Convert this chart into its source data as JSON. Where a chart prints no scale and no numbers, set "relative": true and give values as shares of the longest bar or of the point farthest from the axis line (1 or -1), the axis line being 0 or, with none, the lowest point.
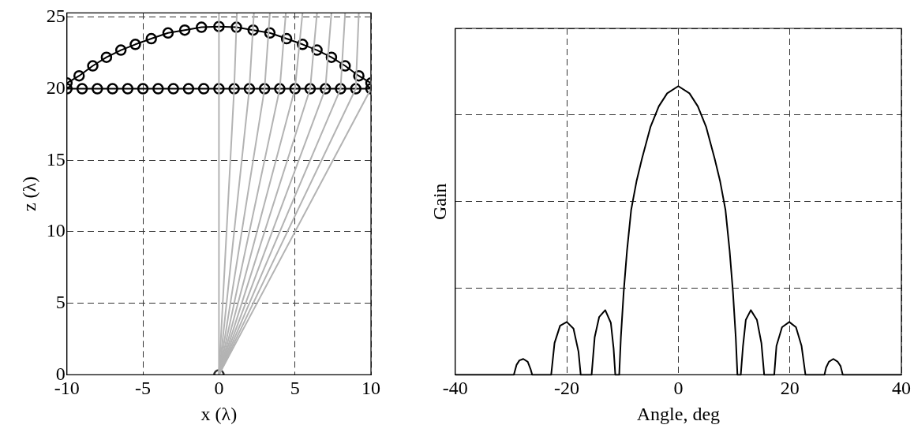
{
  "chart_data": [
    {
      "type": "line",
      "xlabel": "x (λ)",
      "ylabel": "z (λ)",
      "xlim": [
        -10,
        10
      ],
      "xticks": [
        -10,
        -5,
        0,
        5,
        10
      ],
      "ylim": [
        0,
        25.3
      ],
      "yticks": [
        0,
        5,
        10,
        15,
        20,
        25
      ],
      "grid": true,
      "line_style": "solid",
      "series": [
        {
          "color": "#b3b3b3",
          "marker": "none",
          "x": [
            0,
            0,
            0
          ],
          "values": [
            0,
            20,
            25.3
          ]
        },
        {
          "color": "#b3b3b3",
          "marker": "none",
          "x": [
            0,
            1,
            1.18
          ],
          "values": [
            0,
            20,
            25.3
          ]
        },
        {
          "color": "#b3b3b3",
          "marker": "none",
          "x": [
            0,
            2,
            2.3
          ],
          "values": [
            0,
            20,
            25.3
          ]
        },
        {
          "color": "#b3b3b3",
          "marker": "none",
          "x": [
            0,
            3,
            3.35
          ],
          "values": [
            0,
            20,
            25.3
          ]
        },
        {
          "color": "#b3b3b3",
          "marker": "none",
          "x": [
            0,
            4,
            4.4
          ],
          "values": [
            0,
            20,
            25.3
          ]
        },
        {
          "color": "#b3b3b3",
          "marker": "none",
          "x": [
            0,
            5,
            5.5
          ],
          "values": [
            0,
            20,
            25.3
          ]
        },
        {
          "color": "#b3b3b3",
          "marker": "none",
          "x": [
            0,
            6,
            6.45
          ],
          "values": [
            0,
            20,
            25.3
          ]
        },
        {
          "color": "#b3b3b3",
          "marker": "none",
          "x": [
            0,
            7,
            7.4
          ],
          "values": [
            0,
            20,
            25.3
          ]
        },
        {
          "color": "#b3b3b3",
          "marker": "none",
          "x": [
            0,
            8,
            8.3
          ],
          "values": [
            0,
            20,
            25.3
          ]
        },
        {
          "color": "#b3b3b3",
          "marker": "none",
          "x": [
            0,
            9,
            9.2
          ],
          "values": [
            0,
            20,
            25.3
          ]
        },
        {
          "color": "#b3b3b3",
          "marker": "none",
          "x": [
            0,
            10,
            10
          ],
          "values": [
            0,
            20,
            25.3
          ]
        },
        {
          "color": "#000000",
          "marker": "circle",
          "x": [
            -10,
            -9,
            -8,
            -7,
            -6,
            -5,
            -4,
            -3,
            -2,
            -1,
            0,
            1,
            2,
            3,
            4,
            5,
            6,
            7,
            8,
            9,
            10
          ],
          "values": [
            20,
            20,
            20,
            20,
            20,
            20,
            20,
            20,
            20,
            20,
            20,
            20,
            20,
            20,
            20,
            20,
            20,
            20,
            20,
            20,
            20
          ]
        },
        {
          "color": "#000000",
          "marker": "circle",
          "x": [
            -10,
            -9.2,
            -8.3,
            -7.4,
            -6.45,
            -5.5,
            -4.45,
            -3.35,
            -2.25,
            -1.15,
            0,
            1.15,
            2.25,
            3.35,
            4.45,
            5.5,
            6.45,
            7.4,
            8.3,
            9.2,
            10
          ],
          "values": [
            20.4,
            20.9,
            21.6,
            22.2,
            22.7,
            23.1,
            23.5,
            23.9,
            24.1,
            24.3,
            24.35,
            24.3,
            24.1,
            23.9,
            23.5,
            23.1,
            22.7,
            22.2,
            21.6,
            20.9,
            20.4
          ]
        },
        {
          "type": "scatter",
          "color": "#333333",
          "marker": "circle",
          "x": [
            0
          ],
          "values": [
            0
          ]
        }
      ]
    },
    {
      "type": "line",
      "xlabel": "Angle, deg",
      "ylabel": "Gain",
      "relative": true,
      "tick_labels": "x",
      "xlim": [
        -40,
        40
      ],
      "xticks": [
        -40,
        -20,
        0,
        20,
        40
      ],
      "grid": true,
      "line_style": "solid",
      "marker": "none",
      "series": [
        {
          "color": "#000000",
          "x": [
            -40,
            -29.5,
            -29,
            -28.5,
            -27.8,
            -27,
            -26.5,
            -26.2,
            -22.8,
            -22.2,
            -21.2,
            -20,
            -18.8,
            -17.9,
            -17.5,
            -15.55,
            -15,
            -14.2,
            -13.1,
            -12.1,
            -11.6,
            -11.3,
            -10.6,
            -10.3,
            -9.8,
            -9.2,
            -8.45,
            -7.5,
            -6.5,
            -5,
            -3.5,
            -2,
            0,
            2,
            3.5,
            5,
            6.5,
            7.5,
            8.45,
            9.2,
            9.8,
            10.3,
            10.6,
            11.2,
            11.6,
            12.1,
            13,
            14.1,
            14.9,
            15.4,
            17.2,
            17.6,
            18.6,
            19.9,
            21.1,
            22.1,
            22.8,
            26.2,
            26.5,
            27,
            27.8,
            28.6,
            29.1,
            29.5,
            40
          ],
          "values": [
            0,
            0,
            0.035,
            0.05,
            0.055,
            0.045,
            0.02,
            0,
            0,
            0.11,
            0.17,
            0.183,
            0.16,
            0.08,
            0,
            0,
            0.13,
            0.2,
            0.224,
            0.18,
            0.09,
            0,
            0,
            0.13,
            0.286,
            0.43,
            0.572,
            0.67,
            0.75,
            0.858,
            0.93,
            0.975,
            1,
            0.975,
            0.93,
            0.858,
            0.75,
            0.67,
            0.572,
            0.43,
            0.286,
            0.13,
            0,
            0,
            0.1,
            0.19,
            0.224,
            0.19,
            0.11,
            0,
            0,
            0.1,
            0.165,
            0.183,
            0.165,
            0.1,
            0,
            0,
            0.025,
            0.045,
            0.055,
            0.045,
            0.03,
            0,
            0
          ]
        }
      ]
    }
  ]
}
